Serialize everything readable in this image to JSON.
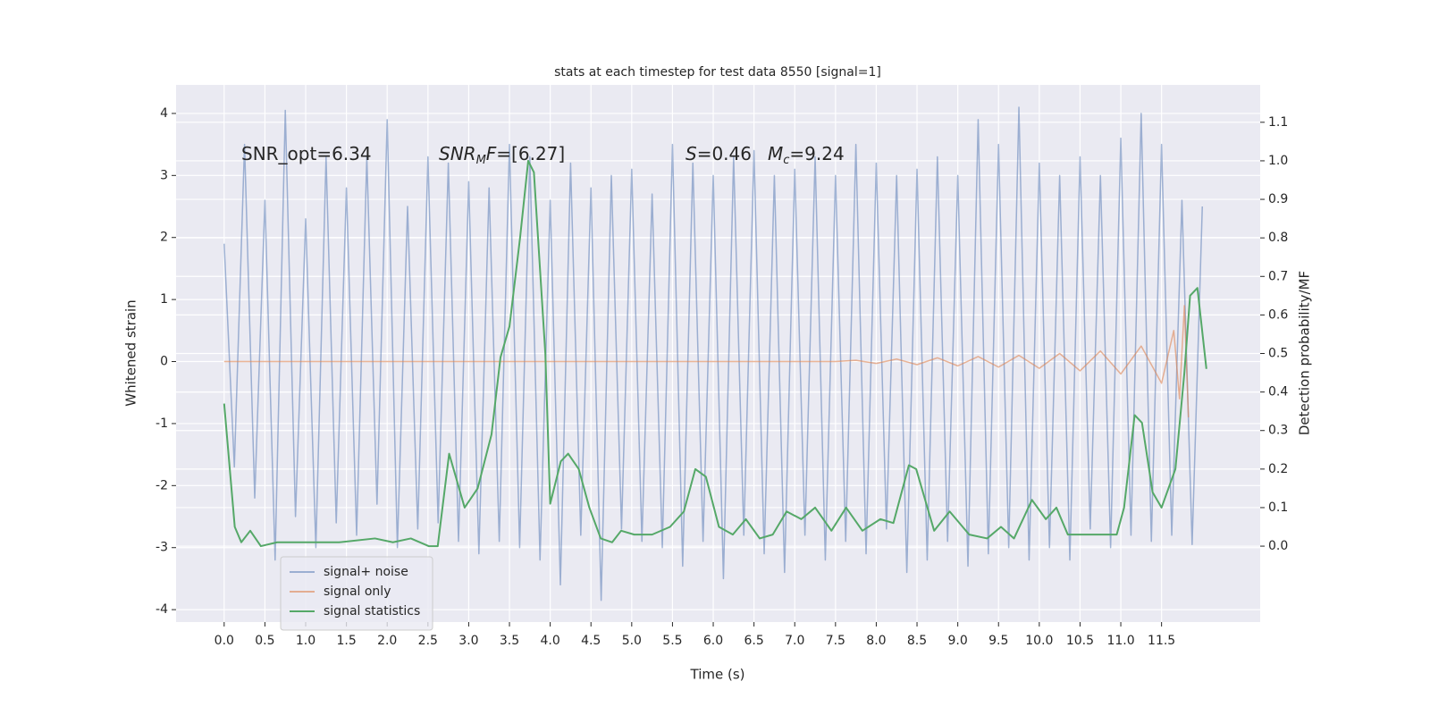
{
  "chart_data": {
    "type": "line",
    "title": "stats at each timestep for test data 8550 [signal=1]",
    "xlabel": "Time (s)",
    "ylabel": "Whitened strain",
    "y2label": "Detection probability/MF",
    "annotations": [
      [
        "SNR_opt=6.34"
      ],
      [
        "SNR",
        "M",
        "F",
        "=[6.27]"
      ],
      [
        "S",
        "=0.46"
      ],
      [
        "M",
        "c",
        "=9.24"
      ]
    ],
    "xlim": [
      -0.59,
      12.71
    ],
    "ylim": [
      -4.2,
      4.46
    ],
    "y2lim": [
      -0.197,
      1.197
    ],
    "xticks": [
      {
        "value": 0,
        "label": "0.0"
      },
      0.5,
      {
        "value": 1,
        "label": "1.0"
      },
      1.5,
      {
        "value": 2,
        "label": "2.0"
      },
      2.5,
      {
        "value": 3,
        "label": "3.0"
      },
      3.5,
      {
        "value": 4,
        "label": "4.0"
      },
      4.5,
      {
        "value": 5,
        "label": "5.0"
      },
      5.5,
      {
        "value": 6,
        "label": "6.0"
      },
      6.5,
      {
        "value": 7,
        "label": "7.0"
      },
      7.5,
      {
        "value": 8,
        "label": "8.0"
      },
      8.5,
      {
        "value": 9,
        "label": "9.0"
      },
      9.5,
      {
        "value": 10,
        "label": "10.0"
      },
      10.5,
      {
        "value": 11,
        "label": "11.0"
      },
      11.5
    ],
    "yticks": [
      -4,
      -3,
      -2,
      -1,
      0,
      1,
      2,
      3,
      4
    ],
    "y2ticks": [
      {
        "value": 0,
        "label": "0.0"
      },
      0.1,
      0.2,
      0.3,
      0.4,
      0.5,
      0.6,
      0.7,
      0.8,
      0.9,
      {
        "value": 1,
        "label": "1.0"
      },
      1.1
    ],
    "grid": true,
    "legend": "lower left",
    "background": "#eaeaf2",
    "series": [
      {
        "name": "signal+ noise",
        "color": "#4c72b0",
        "opacity": 0.5,
        "x": [
          0,
          0.125,
          0.25,
          0.375,
          0.5,
          0.625,
          0.75,
          0.875,
          1,
          1.125,
          1.25,
          1.375,
          1.5,
          1.625,
          1.75,
          1.875,
          2,
          2.125,
          2.25,
          2.375,
          2.5,
          2.625,
          2.75,
          2.875,
          3,
          3.125,
          3.25,
          3.375,
          3.5,
          3.625,
          3.75,
          3.875,
          4,
          4.125,
          4.25,
          4.375,
          4.5,
          4.625,
          4.75,
          4.875,
          5,
          5.125,
          5.25,
          5.375,
          5.5,
          5.625,
          5.75,
          5.875,
          6,
          6.125,
          6.25,
          6.375,
          6.5,
          6.625,
          6.75,
          6.875,
          7,
          7.125,
          7.25,
          7.375,
          7.5,
          7.625,
          7.75,
          7.875,
          8,
          8.125,
          8.25,
          8.375,
          8.5,
          8.625,
          8.75,
          8.875,
          9,
          9.125,
          9.25,
          9.375,
          9.5,
          9.625,
          9.75,
          9.875,
          10,
          10.125,
          10.25,
          10.375,
          10.5,
          10.625,
          10.75,
          10.875,
          11,
          11.125,
          11.25,
          11.375,
          11.5,
          11.625,
          11.75,
          11.875,
          12
        ],
        "values": [
          1.9,
          -1.7,
          3.5,
          -2.2,
          2.6,
          -3.2,
          4.05,
          -2.5,
          2.3,
          -3.0,
          3.3,
          -2.6,
          2.8,
          -2.8,
          3.3,
          -2.3,
          3.9,
          -3.0,
          2.5,
          -2.7,
          3.3,
          -2.6,
          3.2,
          -2.9,
          2.9,
          -3.1,
          2.8,
          -2.9,
          3.5,
          -3.0,
          3.3,
          -3.2,
          2.6,
          -3.6,
          3.2,
          -2.8,
          2.8,
          -3.85,
          3.0,
          -2.7,
          3.1,
          -2.9,
          2.7,
          -3.0,
          3.5,
          -3.3,
          3.2,
          -2.9,
          3.0,
          -3.5,
          3.3,
          -2.8,
          3.4,
          -3.1,
          3.0,
          -3.4,
          3.1,
          -2.8,
          3.3,
          -3.2,
          3.0,
          -2.9,
          3.5,
          -3.1,
          3.2,
          -2.7,
          3.0,
          -3.4,
          3.1,
          -3.2,
          3.3,
          -2.9,
          3.0,
          -3.3,
          3.9,
          -3.1,
          3.5,
          -3.0,
          4.1,
          -3.2,
          3.2,
          -3.0,
          3.0,
          -3.2,
          3.3,
          -2.7,
          3.0,
          -3.0,
          3.6,
          -2.8,
          4.0,
          -2.9,
          3.5,
          -2.8,
          2.6,
          -2.95,
          2.5
        ]
      },
      {
        "name": "signal only",
        "color": "#dd8452",
        "opacity": 0.6,
        "x": [
          0,
          7.5,
          7.75,
          8.0,
          8.25,
          8.5,
          8.75,
          9.0,
          9.25,
          9.5,
          9.75,
          10.0,
          10.25,
          10.5,
          10.75,
          11.0,
          11.25,
          11.5,
          11.65,
          11.72,
          11.78,
          11.83
        ],
        "values": [
          0,
          0,
          0.02,
          -0.03,
          0.04,
          -0.05,
          0.06,
          -0.07,
          0.08,
          -0.09,
          0.1,
          -0.11,
          0.13,
          -0.15,
          0.17,
          -0.2,
          0.25,
          -0.35,
          0.5,
          -0.6,
          0.9,
          -0.9
        ]
      },
      {
        "name": "signal statistics",
        "color": "#55a868",
        "axis": "y2",
        "x": [
          0,
          0.13,
          0.21,
          0.32,
          0.45,
          0.65,
          0.98,
          1.41,
          1.85,
          2.07,
          2.29,
          2.51,
          2.62,
          2.76,
          2.95,
          3.11,
          3.28,
          3.39,
          3.5,
          3.63,
          3.73,
          3.8,
          3.94,
          4.0,
          4.13,
          4.22,
          4.35,
          4.48,
          4.62,
          4.76,
          4.87,
          5.03,
          5.25,
          5.47,
          5.64,
          5.78,
          5.91,
          6.07,
          6.24,
          6.4,
          6.57,
          6.73,
          6.9,
          7.08,
          7.25,
          7.45,
          7.63,
          7.83,
          8.05,
          8.21,
          8.4,
          8.49,
          8.71,
          8.9,
          9.14,
          9.36,
          9.53,
          9.69,
          9.91,
          10.08,
          10.21,
          10.35,
          10.57,
          10.95,
          11.04,
          11.17,
          11.26,
          11.39,
          11.5,
          11.67,
          11.78,
          11.85,
          11.94,
          12.05
        ],
        "values": [
          0.37,
          0.05,
          0.01,
          0.04,
          0.0,
          0.01,
          0.01,
          0.01,
          0.02,
          0.01,
          0.02,
          0.0,
          0.0,
          0.24,
          0.1,
          0.15,
          0.29,
          0.49,
          0.57,
          0.8,
          1.0,
          0.97,
          0.5,
          0.11,
          0.22,
          0.24,
          0.2,
          0.1,
          0.02,
          0.01,
          0.04,
          0.03,
          0.03,
          0.05,
          0.09,
          0.2,
          0.18,
          0.05,
          0.03,
          0.07,
          0.02,
          0.03,
          0.09,
          0.07,
          0.1,
          0.04,
          0.1,
          0.04,
          0.07,
          0.06,
          0.21,
          0.2,
          0.04,
          0.09,
          0.03,
          0.02,
          0.05,
          0.02,
          0.12,
          0.07,
          0.1,
          0.03,
          0.03,
          0.03,
          0.1,
          0.34,
          0.32,
          0.14,
          0.1,
          0.2,
          0.45,
          0.65,
          0.67,
          0.46
        ]
      }
    ]
  }
}
